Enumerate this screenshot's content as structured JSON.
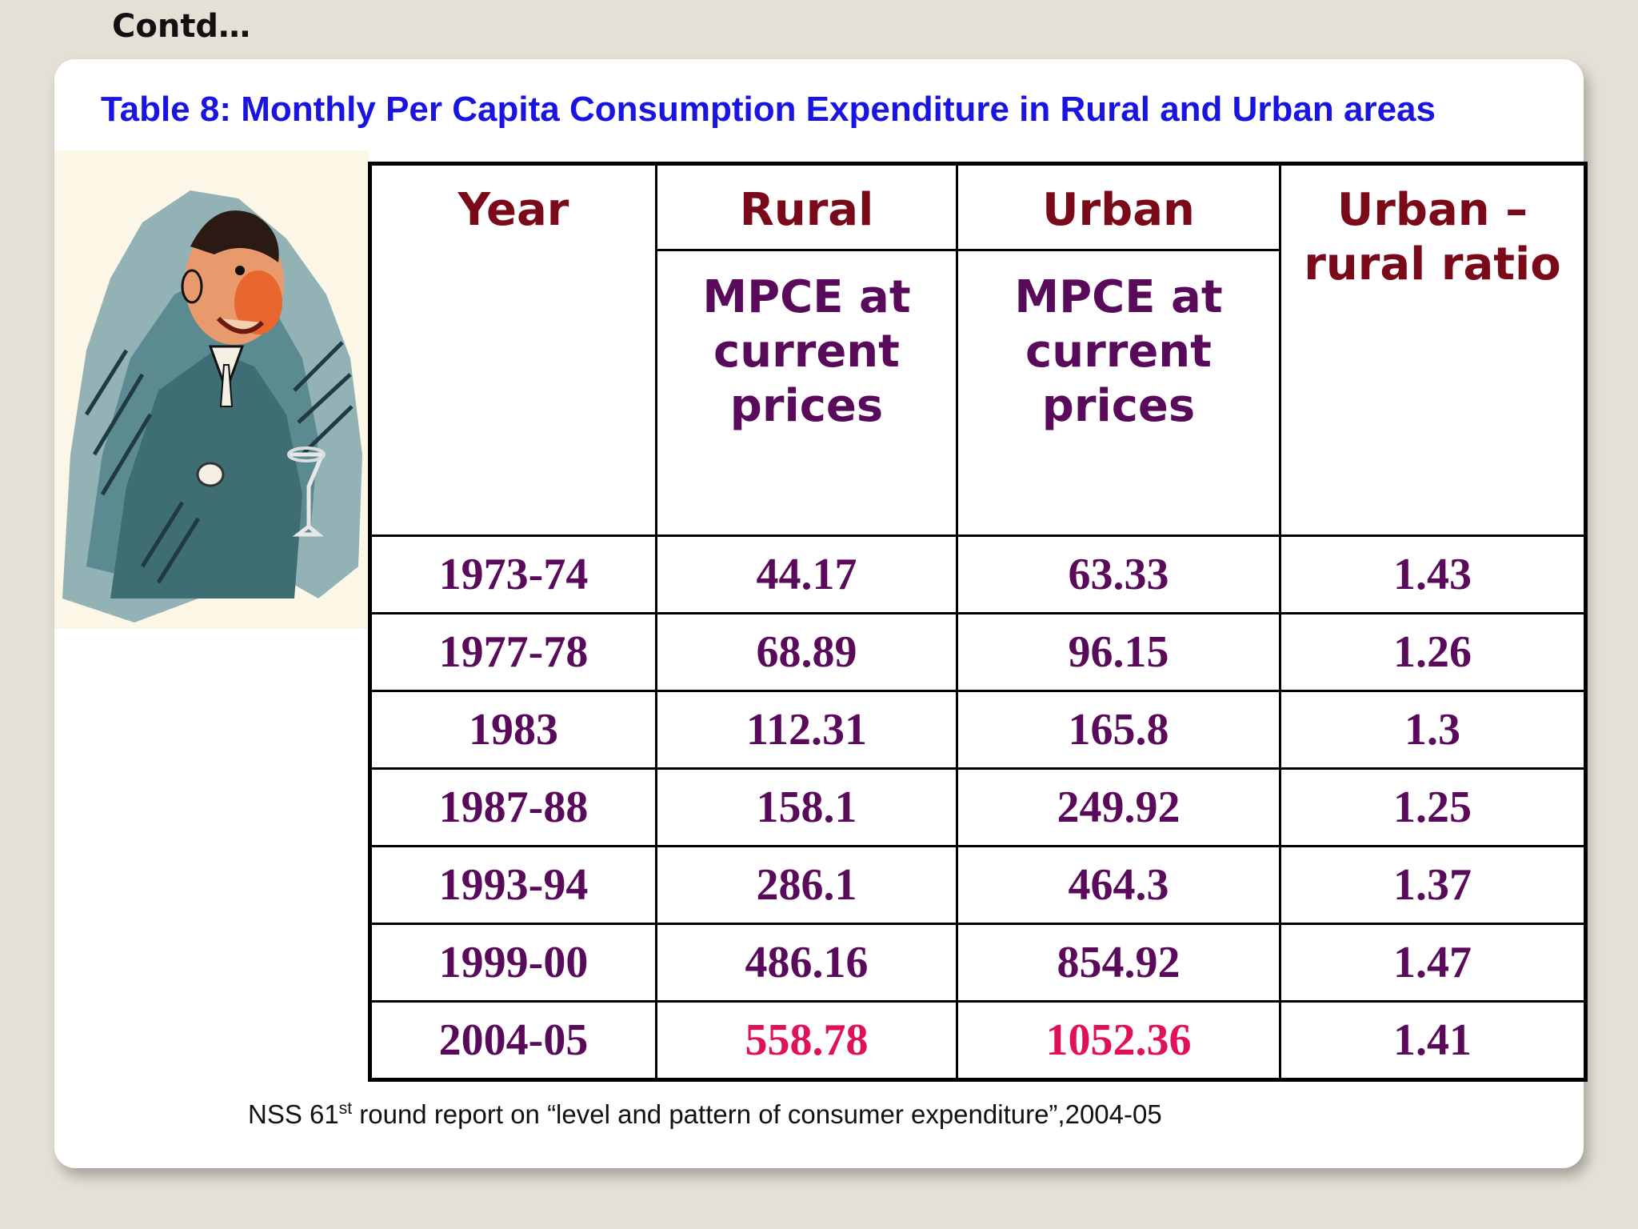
{
  "corner_label": "Contd…",
  "title": "Table 8: Monthly Per Capita Consumption Expenditure in Rural and Urban areas",
  "table": {
    "headers": {
      "year": "Year",
      "rural": "Rural",
      "urban": "Urban",
      "ratio_line1": "Urban –",
      "ratio_line2": "rural ratio",
      "sub_line1": "MPCE at",
      "sub_line2": "current",
      "sub_line3": "prices"
    },
    "rows": [
      {
        "year": "1973-74",
        "rural": "44.17",
        "urban": "63.33",
        "ratio": "1.43"
      },
      {
        "year": "1977-78",
        "rural": "68.89",
        "urban": "96.15",
        "ratio": "1.26"
      },
      {
        "year": "1983",
        "rural": "112.31",
        "urban": "165.8",
        "ratio": "1.3"
      },
      {
        "year": "1987-88",
        "rural": "158.1",
        "urban": "249.92",
        "ratio": "1.25"
      },
      {
        "year": "1993-94",
        "rural": "286.1",
        "urban": "464.3",
        "ratio": "1.37"
      },
      {
        "year": "1999-00",
        "rural": "486.16",
        "urban": "854.92",
        "ratio": "1.47"
      },
      {
        "year": "2004-05",
        "rural": "558.78",
        "urban": "1052.36",
        "ratio": "1.41"
      }
    ],
    "highlight_color": "#e0105a"
  },
  "source": {
    "prefix": "NSS 61",
    "superscript": "st",
    "suffix": " round report on “level and pattern of consumer expenditure”,2004-05"
  },
  "colors": {
    "title": "#1a14e0",
    "header": "#7a0a1a",
    "values": "#5a0a5a",
    "background": "#e4e0d6"
  }
}
